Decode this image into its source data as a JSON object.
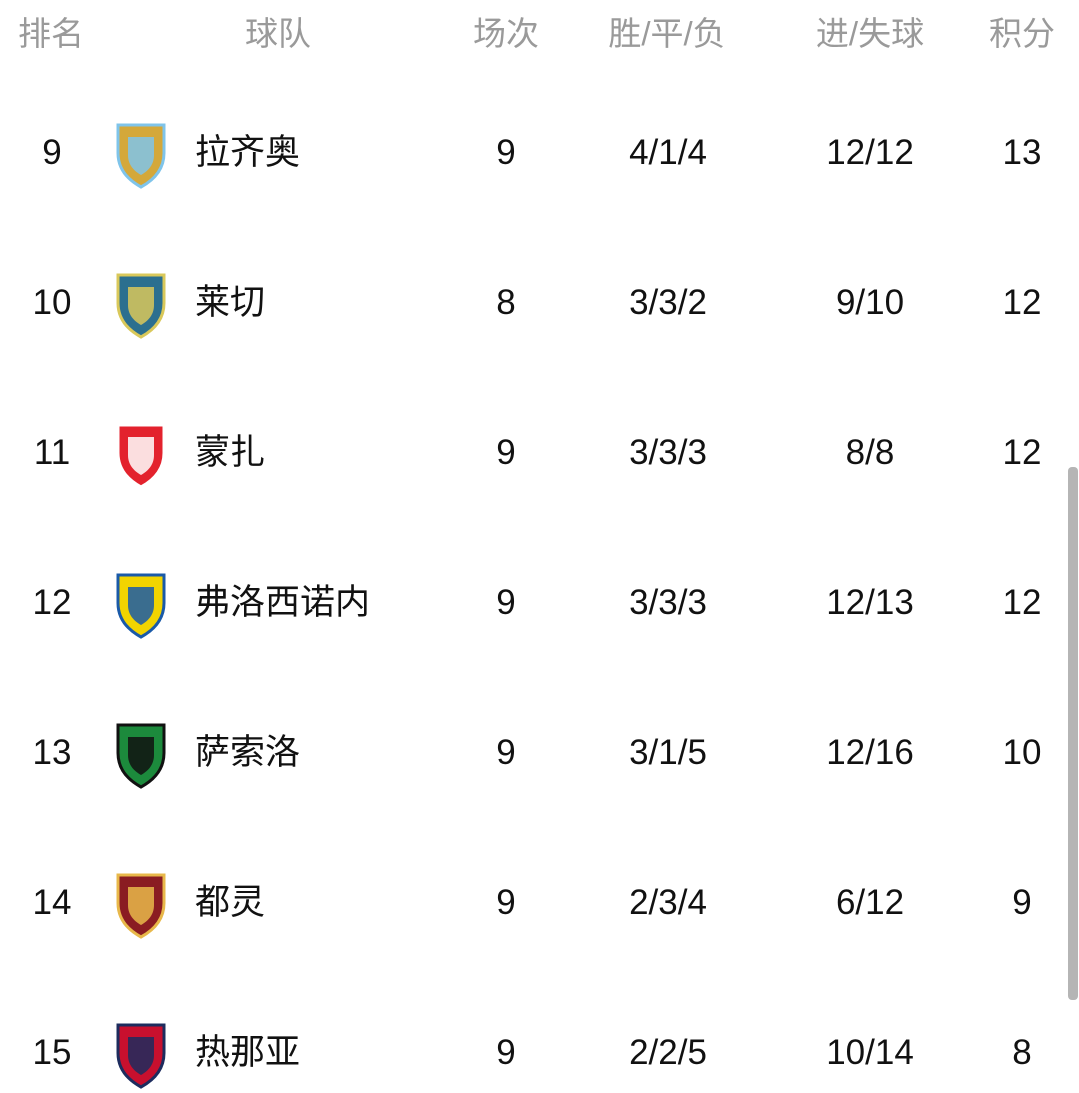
{
  "headers": {
    "rank": "排名",
    "team": "球队",
    "played": "场次",
    "wdl": "胜/平/负",
    "goals": "进/失球",
    "points": "积分"
  },
  "rows": [
    {
      "rank": "9",
      "team": "拉齐奥",
      "played": "9",
      "wdl": "4/1/4",
      "goals": "12/12",
      "points": "13",
      "logo": "lazio-crest",
      "colors": [
        "#d4a83a",
        "#7fc4ea"
      ]
    },
    {
      "rank": "10",
      "team": "莱切",
      "played": "8",
      "wdl": "3/3/2",
      "goals": "9/10",
      "points": "12",
      "logo": "lecce-crest",
      "colors": [
        "#2b6f8f",
        "#d9c85a"
      ]
    },
    {
      "rank": "11",
      "team": "蒙扎",
      "played": "9",
      "wdl": "3/3/3",
      "goals": "8/8",
      "points": "12",
      "logo": "monza-crest",
      "colors": [
        "#e3222d",
        "#ffffff"
      ]
    },
    {
      "rank": "12",
      "team": "弗洛西诺内",
      "played": "9",
      "wdl": "3/3/3",
      "goals": "12/13",
      "points": "12",
      "logo": "frosinone-crest",
      "colors": [
        "#f2d400",
        "#1a5aa8"
      ]
    },
    {
      "rank": "13",
      "team": "萨索洛",
      "played": "9",
      "wdl": "3/1/5",
      "goals": "12/16",
      "points": "10",
      "logo": "sassuolo-crest",
      "colors": [
        "#1c8a3c",
        "#111111"
      ]
    },
    {
      "rank": "14",
      "team": "都灵",
      "played": "9",
      "wdl": "2/3/4",
      "goals": "6/12",
      "points": "9",
      "logo": "torino-crest",
      "colors": [
        "#8a1c22",
        "#e8b84a"
      ]
    },
    {
      "rank": "15",
      "team": "热那亚",
      "played": "9",
      "wdl": "2/2/5",
      "goals": "10/14",
      "points": "8",
      "logo": "genoa-crest",
      "colors": [
        "#c8102e",
        "#1d2c5e"
      ]
    }
  ]
}
